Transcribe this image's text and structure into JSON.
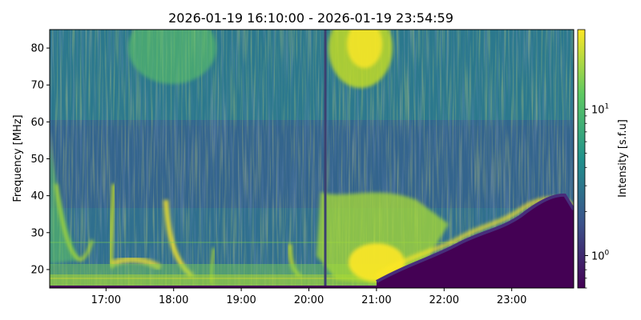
{
  "chart_data": {
    "type": "heatmap",
    "title": "2026-01-19 16:10:00 - 2026-01-19 23:54:59",
    "xlabel": "",
    "ylabel": "Frequency [MHz]",
    "x_range": [
      "2026-01-19 16:10:00",
      "2026-01-19 23:54:59"
    ],
    "x_ticks": [
      "17:00",
      "18:00",
      "19:00",
      "20:00",
      "21:00",
      "22:00",
      "23:00"
    ],
    "y_range": [
      15,
      85
    ],
    "y_ticks": [
      20,
      30,
      40,
      50,
      60,
      70,
      80
    ],
    "colorbar": {
      "label": "Intensity [s.f.u]",
      "scale": "log",
      "range": [
        0.6,
        35
      ],
      "tick_labels": [
        "10^0",
        "10^1"
      ],
      "colormap": "viridis",
      "colors": [
        "#440154",
        "#3b528b",
        "#21918c",
        "#5ec962",
        "#fde725"
      ]
    },
    "features": {
      "vertical_data_gap_time": "20:16",
      "low_frequency_cutoff_rise": "from 21:30 at 20 MHz up to 40 MHz near 23:20"
    },
    "grid": false
  }
}
